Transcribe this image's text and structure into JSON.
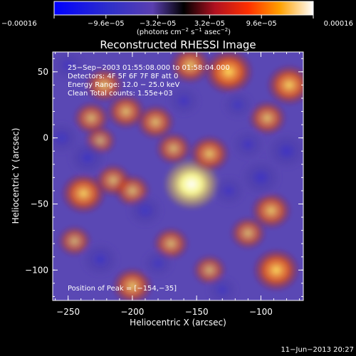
{
  "colorbar": {
    "ticks": [
      {
        "label": "−0.00016",
        "value": -0.00016
      },
      {
        "label": "−9.6e−05",
        "value": -9.6e-05
      },
      {
        "label": "−3.2e−05",
        "value": -3.2e-05
      },
      {
        "label": "3.2e−05",
        "value": 3.2e-05
      },
      {
        "label": "9.6e−05",
        "value": 9.6e-05
      },
      {
        "label": "0.00016",
        "value": 0.00016
      }
    ],
    "range": [
      -0.00016,
      0.00016
    ],
    "units": {
      "open": "(photons cm",
      "exp1": "−2",
      "mid1": " s",
      "exp2": "−1",
      "mid2": " asec",
      "exp3": "−2",
      "close": ")"
    }
  },
  "chart_data": {
    "type": "heatmap",
    "title": "Reconstructed RHESSI Image",
    "xlabel": "Heliocentric X (arcsec)",
    "ylabel": "Heliocentric Y (arcsec)",
    "xlim": [
      -262,
      -67
    ],
    "ylim": [
      -123,
      65
    ],
    "x_ticks": [
      {
        "label": "−250",
        "value": -250
      },
      {
        "label": "−200",
        "value": -200
      },
      {
        "label": "−150",
        "value": -150
      },
      {
        "label": "−100",
        "value": -100
      }
    ],
    "y_ticks": [
      {
        "label": "50",
        "value": 50
      },
      {
        "label": "0",
        "value": 0
      },
      {
        "label": "−50",
        "value": -50
      },
      {
        "label": "−100",
        "value": -100
      }
    ],
    "annotations": {
      "time": "25−Sep−2003 01:55:08.000 to 01:58:04.000",
      "detectors": "Detectors: 4F 5F 6F 7F 8F att 0",
      "energy": "Energy Range: 12.0 − 25.0 keV",
      "clean": "Clean     Total counts: 1.55e+03",
      "peak": "Position of Peak = [−154,−35]"
    },
    "peak": {
      "x": -154,
      "y": -35
    },
    "sources": [
      {
        "x": -154,
        "y": -35,
        "value": 0.00016
      },
      {
        "x": -140,
        "y": -12,
        "value": 9e-05
      },
      {
        "x": -168,
        "y": -8,
        "value": 7e-05
      },
      {
        "x": -182,
        "y": 12,
        "value": 8e-05
      },
      {
        "x": -205,
        "y": 20,
        "value": 8e-05
      },
      {
        "x": -232,
        "y": 15,
        "value": 7e-05
      },
      {
        "x": -222,
        "y": 40,
        "value": 8e-05
      },
      {
        "x": -125,
        "y": 50,
        "value": 0.00013
      },
      {
        "x": -155,
        "y": 55,
        "value": 9e-05
      },
      {
        "x": -78,
        "y": 40,
        "value": 0.00011
      },
      {
        "x": -95,
        "y": 15,
        "value": 8e-05
      },
      {
        "x": -238,
        "y": -42,
        "value": 0.00011
      },
      {
        "x": -215,
        "y": -32,
        "value": 7e-05
      },
      {
        "x": -200,
        "y": -40,
        "value": 7e-05
      },
      {
        "x": -92,
        "y": -55,
        "value": 9e-05
      },
      {
        "x": -110,
        "y": -72,
        "value": 7e-05
      },
      {
        "x": -88,
        "y": -100,
        "value": 0.00012
      },
      {
        "x": -200,
        "y": -112,
        "value": 9e-05
      },
      {
        "x": -170,
        "y": -80,
        "value": 7e-05
      },
      {
        "x": -140,
        "y": -100,
        "value": 6e-05
      },
      {
        "x": -225,
        "y": -2,
        "value": 5e-05
      },
      {
        "x": -245,
        "y": -78,
        "value": 6e-05
      },
      {
        "x": -235,
        "y": -15,
        "value": -8e-05
      },
      {
        "x": -255,
        "y": 0,
        "value": -7e-05
      },
      {
        "x": -100,
        "y": -30,
        "value": -9e-05
      },
      {
        "x": -110,
        "y": -5,
        "value": -6e-05
      },
      {
        "x": -190,
        "y": -55,
        "value": -7e-05
      },
      {
        "x": -125,
        "y": -40,
        "value": -6e-05
      },
      {
        "x": -225,
        "y": -92,
        "value": -8e-05
      },
      {
        "x": -80,
        "y": -10,
        "value": -9e-05
      },
      {
        "x": -160,
        "y": 28,
        "value": -6e-05
      },
      {
        "x": -118,
        "y": 25,
        "value": -5e-05
      },
      {
        "x": -250,
        "y": 55,
        "value": -6e-05
      },
      {
        "x": -180,
        "y": -95,
        "value": -5e-05
      },
      {
        "x": -130,
        "y": -115,
        "value": -5e-05
      }
    ]
  },
  "footer": {
    "datetime": "11−Jun−2013 20:27"
  }
}
